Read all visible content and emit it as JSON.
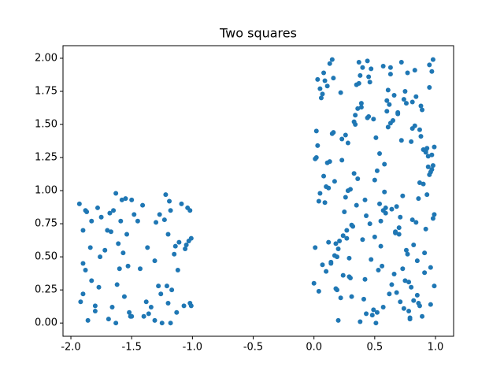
{
  "chart_data": {
    "type": "scatter",
    "title": "Two squares",
    "xlim": [
      -2.065,
      1.149
    ],
    "ylim": [
      -0.1,
      2.095
    ],
    "xticks": [
      {
        "value": -2.0,
        "label": "-2.0"
      },
      {
        "value": -1.5,
        "label": "-1.5"
      },
      {
        "value": -1.0,
        "label": "-1.0"
      },
      {
        "value": -0.5,
        "label": "-0.5"
      },
      {
        "value": 0,
        "label": "0.0"
      },
      {
        "value": 0.5,
        "label": "0.5"
      },
      {
        "value": 1.0,
        "label": "1.0"
      }
    ],
    "yticks": [
      {
        "value": 0,
        "label": "0.00"
      },
      {
        "value": 0.25,
        "label": "0.25"
      },
      {
        "value": 0.5,
        "label": "0.50"
      },
      {
        "value": 0.75,
        "label": "0.75"
      },
      {
        "value": 1.0,
        "label": "1.00"
      },
      {
        "value": 1.25,
        "label": "1.25"
      },
      {
        "value": 1.5,
        "label": "1.50"
      },
      {
        "value": 1.75,
        "label": "1.75"
      },
      {
        "value": 2.0,
        "label": "2.00"
      }
    ],
    "series": [
      {
        "color": "#1f77b4",
        "x": [
          -1.93,
          -1.9,
          -1.88,
          -1.87,
          -1.9,
          -1.9,
          -1.92,
          -1.88,
          -1.86,
          -1.84,
          -1.83,
          -1.83,
          -1.8,
          -1.8,
          -1.78,
          -1.77,
          -1.76,
          -1.75,
          -1.72,
          -1.7,
          -1.69,
          -1.68,
          -1.67,
          -1.66,
          -1.65,
          -1.63,
          -1.63,
          -1.62,
          -1.61,
          -1.6,
          -1.59,
          -1.58,
          -1.57,
          -1.56,
          -1.55,
          -1.54,
          -1.53,
          -1.52,
          -1.51,
          -1.5,
          -1.5,
          -1.48,
          -1.45,
          -1.43,
          -1.41,
          -1.4,
          -1.38,
          -1.37,
          -1.36,
          -1.34,
          -1.31,
          -1.31,
          -1.3,
          -1.28,
          -1.27,
          -1.26,
          -1.25,
          -1.23,
          -1.22,
          -1.21,
          -1.2,
          -1.2,
          -1.19,
          -1.18,
          -1.18,
          -1.17,
          -1.15,
          -1.14,
          -1.13,
          -1.12,
          -1.11,
          -1.09,
          -1.07,
          -1.06,
          -1.05,
          -1.04,
          -1.03,
          -1.02,
          -1.02,
          -1.01,
          -1.01,
          0.03,
          0.57,
          0.81,
          0.24,
          0.95,
          0.42,
          0.11,
          0.68,
          0.36,
          0.89,
          0.5,
          0.07,
          0.73,
          0.28,
          0.98,
          0.15,
          0.62,
          0.44,
          0.86,
          0.33,
          0.01,
          0.77,
          0.2,
          0.54,
          0.92,
          0.39,
          0.66,
          0.12,
          0.83,
          0.47,
          0.26,
          0.71,
          0.05,
          0.59,
          0.94,
          0.18,
          0.37,
          0.8,
          0.63,
          0.09,
          0.52,
          0.99,
          0.31,
          0.74,
          0.14,
          0.87,
          0.45,
          0.22,
          0.69,
          0.58,
          0.02,
          0.91,
          0.35,
          0.78,
          0.16,
          0.64,
          0.49,
          0.84,
          0.27,
          0.97,
          0.4,
          0.1,
          0.72,
          0.55,
          0.3,
          0.88,
          0.19,
          0.61,
          0.04,
          0.82,
          0.46,
          0.96,
          0.23,
          0.67,
          0.34,
          0.79,
          0.13,
          0.56,
          0.9,
          0.43,
          0.08,
          0.75,
          0.29,
          0.6,
          0.93,
          0.17,
          0.51,
          0.85,
          0.38,
          0.7,
          0.0,
          0.65,
          0.25,
          0.98,
          0.48,
          0.81,
          0.14,
          0.57,
          0.32,
          0.94,
          0.06,
          0.73,
          0.41,
          0.87,
          0.21,
          0.63,
          0.99,
          0.36,
          0.76,
          0.11,
          0.53,
          0.89,
          0.28,
          0.68,
          0.03,
          0.84,
          0.44,
          0.19,
          0.96,
          0.59,
          0.33,
          0.78,
          0.09,
          0.5,
          0.92,
          0.24,
          0.66,
          0.42,
          0.86,
          0.15,
          0.71,
          0.01,
          0.55,
          0.97,
          0.38,
          0.8,
          0.27,
          0.62,
          0.07,
          0.9,
          0.47,
          0.18,
          0.83,
          0.35,
          0.74,
          0.95,
          0.12,
          0.58,
          0.3,
          0.69,
          0.05,
          0.88,
          0.43,
          0.22,
          0.77,
          0.52,
          0.99,
          0.16,
          0.64,
          0.39,
          0.85,
          0.1,
          0.6,
          0.31,
          0.93,
          0.46,
          0.72,
          0.2,
          0.97,
          0.54,
          0.02,
          0.79,
          0.37,
          0.67,
          0.13,
          0.91,
          0.49,
          0.26,
          0.82,
          0.61,
          0.4,
          0.95,
          0.08,
          0.75,
          0.34,
          0.57,
          0.87,
          0.23,
          0.7,
          0.98,
          0.04,
          0.45,
          0.81,
          0.17,
          0.63,
          0.29,
          0.92,
          0.51,
          0.76,
          0.96
        ],
        "values": [
          0.9,
          0.7,
          0.85,
          0.84,
          0.45,
          0.22,
          0.16,
          0.4,
          0.02,
          0.57,
          0.77,
          0.32,
          0.13,
          0.09,
          0.87,
          0.27,
          0.5,
          0.8,
          0.55,
          0.7,
          0.03,
          0.83,
          0.69,
          0.12,
          0.85,
          0.98,
          0.0,
          0.29,
          0.6,
          0.41,
          0.77,
          0.93,
          0.53,
          0.2,
          0.94,
          0.67,
          0.43,
          0.08,
          0.05,
          0.93,
          0.05,
          0.82,
          0.77,
          0.41,
          0.89,
          0.05,
          0.16,
          0.57,
          0.07,
          0.12,
          0.47,
          0.02,
          0.76,
          0.28,
          0.82,
          0.22,
          0.0,
          0.78,
          0.97,
          0.28,
          0.67,
          0.15,
          0.92,
          0.85,
          0.0,
          0.25,
          0.52,
          0.58,
          0.08,
          0.4,
          0.61,
          0.9,
          0.13,
          0.56,
          0.59,
          0.87,
          0.62,
          0.15,
          0.85,
          0.13,
          0.64,
          1.84,
          0.12,
          1.47,
          0.66,
          1.95,
          0.33,
          1.21,
          0.88,
          1.62,
          0.05,
          1.08,
          1.73,
          0.41,
          1.36,
          0.79,
          1.99,
          0.22,
          1.55,
          0.94,
          1.13,
          0.57,
          1.89,
          0.02,
          1.28,
          0.71,
          1.66,
          0.37,
          1.02,
          1.91,
          0.48,
          1.42,
          0.16,
          1.77,
          0.83,
          1.18,
          0.6,
          1.97,
          0.27,
          1.51,
          0.91,
          0.08,
          1.33,
          0.74,
          1.69,
          0.45,
          1.06,
          1.86,
          0.19,
          1.59,
          0.99,
          1.25,
          0.53,
          1.8,
          0.31,
          1.44,
          0.86,
          0.1,
          1.71,
          0.64,
          1.16,
          1.93,
          0.39,
          1.38,
          0.77,
          1.01,
          1.64,
          0.25,
          1.48,
          0.92,
          0.59,
          1.82,
          0.14,
          1.23,
          0.69,
          1.57,
          0.03,
          1.96,
          0.43,
          1.31,
          0.81,
          1.11,
          1.75,
          0.35,
          1.6,
          0.97,
          0.51,
          1.4,
          0.21,
          1.87,
          0.67,
          0.3,
          1.53,
          0.84,
          1.19,
          0.06,
          1.67,
          0.46,
          1.94,
          0.73,
          1.26,
          1.7,
          0.96,
          0.18,
          1.46,
          0.62,
          1.88,
          0.28,
          1.09,
          0.55,
          1.79,
          0.4,
          1.61,
          1.0,
          0.23,
          1.34,
          0.76,
          1.98,
          0.5,
          1.14,
          0.87,
          1.52,
          0.09,
          1.83,
          0.65,
          1.29,
          0.36,
          1.72,
          0.93,
          0.15,
          1.43,
          0.8,
          1.24,
          0.58,
          1.9,
          0.01,
          1.37,
          0.7,
          1.65,
          0.44,
          1.05,
          1.92,
          0.26,
          1.49,
          0.89,
          0.11,
          1.78,
          0.61,
          1.2,
          0.34,
          1.58,
          0.98,
          1.41,
          0.07,
          1.74,
          0.52,
          1.15,
          0.82,
          1.85,
          0.29,
          1.63,
          0.47,
          1.03,
          1.68,
          0.2,
          1.32,
          0.75,
          1.97,
          0.56,
          1.27,
          0.9,
          1.45,
          0.04,
          1.81,
          0.68,
          1.22,
          0.38,
          1.54,
          0.95,
          0.17,
          1.76,
          0.63,
          1.12,
          1.89,
          0.32,
          1.5,
          0.85,
          0.13,
          1.39,
          0.72,
          1.99,
          0.24,
          1.56,
          0.78,
          1.07,
          1.93,
          0.49,
          1.3,
          0.0,
          1.66,
          0.42
        ]
      }
    ]
  }
}
